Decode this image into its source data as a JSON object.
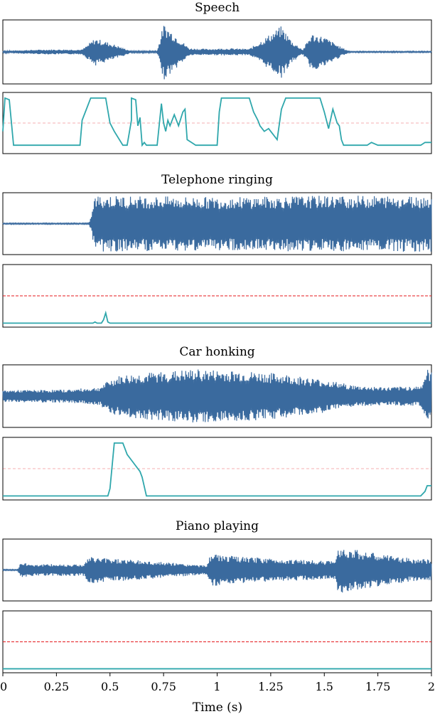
{
  "figure": {
    "xlabel": "Time (s)",
    "xlim": [
      0,
      2
    ],
    "xticks": [
      "0",
      "0.25",
      "0.5",
      "0.75",
      "1",
      "1.25",
      "1.5",
      "1.75",
      "2"
    ],
    "colors": {
      "waveform": "#3a6a9e",
      "score": "#2fa7ac",
      "threshold": "#e41a1c",
      "frame": "#000000"
    }
  },
  "chart_data": [
    {
      "type": "line",
      "title": "Speech",
      "waveform": {
        "x": [
          0,
          0.05,
          0.2,
          0.37,
          0.43,
          0.5,
          0.6,
          0.72,
          0.75,
          0.8,
          0.87,
          0.95,
          1.05,
          1.15,
          1.3,
          1.35,
          1.4,
          1.44,
          1.5,
          1.58,
          1.62,
          2
        ],
        "amplitude": [
          0.03,
          0.05,
          0.08,
          0.08,
          0.45,
          0.3,
          0.03,
          0.03,
          0.92,
          0.6,
          0.12,
          0.1,
          0.12,
          0.1,
          0.85,
          0.35,
          0.08,
          0.6,
          0.5,
          0.15,
          0.02,
          0.02
        ]
      },
      "score": {
        "x": [
          0,
          0.01,
          0.03,
          0.05,
          0.07,
          0.1,
          0.2,
          0.3,
          0.36,
          0.37,
          0.39,
          0.41,
          0.42,
          0.45,
          0.48,
          0.5,
          0.52,
          0.56,
          0.58,
          0.6,
          0.6,
          0.62,
          0.63,
          0.64,
          0.65,
          0.66,
          0.67,
          0.68,
          0.7,
          0.72,
          0.74,
          0.75,
          0.76,
          0.77,
          0.78,
          0.8,
          0.82,
          0.84,
          0.85,
          0.86,
          0.88,
          0.9,
          0.95,
          1.0,
          1.01,
          1.02,
          1.05,
          1.08,
          1.1,
          1.12,
          1.15,
          1.17,
          1.19,
          1.2,
          1.22,
          1.24,
          1.26,
          1.28,
          1.3,
          1.32,
          1.34,
          1.36,
          1.38,
          1.4,
          1.42,
          1.44,
          1.46,
          1.48,
          1.5,
          1.52,
          1.54,
          1.56,
          1.57,
          1.58,
          1.59,
          1.6,
          1.62,
          1.7,
          1.72,
          1.75,
          1.8,
          1.95,
          1.97,
          2.0
        ],
        "y": [
          0.35,
          0.95,
          0.92,
          0.1,
          0.1,
          0.1,
          0.1,
          0.1,
          0.1,
          0.55,
          0.75,
          0.95,
          0.95,
          0.95,
          0.95,
          0.5,
          0.35,
          0.1,
          0.1,
          0.55,
          0.95,
          0.92,
          0.45,
          0.6,
          0.1,
          0.15,
          0.1,
          0.1,
          0.1,
          0.1,
          0.85,
          0.5,
          0.35,
          0.55,
          0.45,
          0.65,
          0.45,
          0.7,
          0.75,
          0.2,
          0.15,
          0.1,
          0.1,
          0.1,
          0.7,
          0.95,
          0.95,
          0.95,
          0.95,
          0.95,
          0.95,
          0.7,
          0.55,
          0.45,
          0.35,
          0.4,
          0.3,
          0.2,
          0.75,
          0.95,
          0.95,
          0.95,
          0.95,
          0.95,
          0.95,
          0.95,
          0.95,
          0.95,
          0.7,
          0.4,
          0.75,
          0.5,
          0.45,
          0.2,
          0.1,
          0.1,
          0.1,
          0.1,
          0.15,
          0.1,
          0.1,
          0.1,
          0.15,
          0.15
        ]
      },
      "threshold": 0.5,
      "threshold_style": "faint"
    },
    {
      "type": "line",
      "title": "Telephone ringing",
      "waveform": {
        "x": [
          0,
          0.4,
          0.41,
          0.43,
          0.5,
          1.0,
          1.5,
          2
        ],
        "amplitude": [
          0.02,
          0.02,
          0.2,
          0.95,
          0.95,
          0.9,
          0.95,
          0.95
        ]
      },
      "score": {
        "x": [
          0,
          0.42,
          0.43,
          0.44,
          0.46,
          0.47,
          0.48,
          0.49,
          0.5,
          1.0,
          2.0
        ],
        "y": [
          0.02,
          0.02,
          0.04,
          0.02,
          0.02,
          0.08,
          0.2,
          0.04,
          0.02,
          0.02,
          0.02
        ]
      },
      "threshold": 0.5,
      "threshold_style": "strong"
    },
    {
      "type": "line",
      "title": "Car honking",
      "waveform": {
        "x": [
          0,
          0.3,
          0.45,
          0.5,
          0.55,
          0.7,
          0.9,
          1.1,
          1.3,
          1.5,
          1.65,
          1.8,
          1.95,
          1.98,
          2
        ],
        "amplitude": [
          0.2,
          0.22,
          0.3,
          0.55,
          0.7,
          0.8,
          0.9,
          0.85,
          0.75,
          0.55,
          0.35,
          0.3,
          0.35,
          0.9,
          0.8
        ]
      },
      "score": {
        "x": [
          0,
          0.45,
          0.49,
          0.5,
          0.52,
          0.56,
          0.58,
          0.6,
          0.62,
          0.64,
          0.65,
          0.67,
          0.7,
          1.0,
          1.5,
          1.95,
          1.97,
          1.98,
          2.0
        ],
        "y": [
          0.02,
          0.02,
          0.02,
          0.15,
          0.95,
          0.95,
          0.75,
          0.65,
          0.55,
          0.45,
          0.35,
          0.02,
          0.02,
          0.02,
          0.02,
          0.02,
          0.1,
          0.2,
          0.2
        ]
      },
      "threshold": 0.5,
      "threshold_style": "faint"
    },
    {
      "type": "line",
      "title": "Piano playing",
      "waveform": {
        "x": [
          0,
          0.07,
          0.08,
          0.15,
          0.38,
          0.4,
          0.55,
          0.95,
          0.96,
          0.97,
          1.1,
          1.3,
          1.55,
          1.56,
          1.6,
          1.75,
          1.9,
          2
        ],
        "amplitude": [
          0.02,
          0.02,
          0.25,
          0.2,
          0.2,
          0.45,
          0.38,
          0.15,
          0.35,
          0.55,
          0.45,
          0.38,
          0.3,
          0.8,
          0.75,
          0.55,
          0.4,
          0.35
        ]
      },
      "score": {
        "x": [
          0,
          1.0,
          2.0
        ],
        "y": [
          0.02,
          0.02,
          0.02
        ]
      },
      "threshold": 0.5,
      "threshold_style": "strong"
    }
  ]
}
